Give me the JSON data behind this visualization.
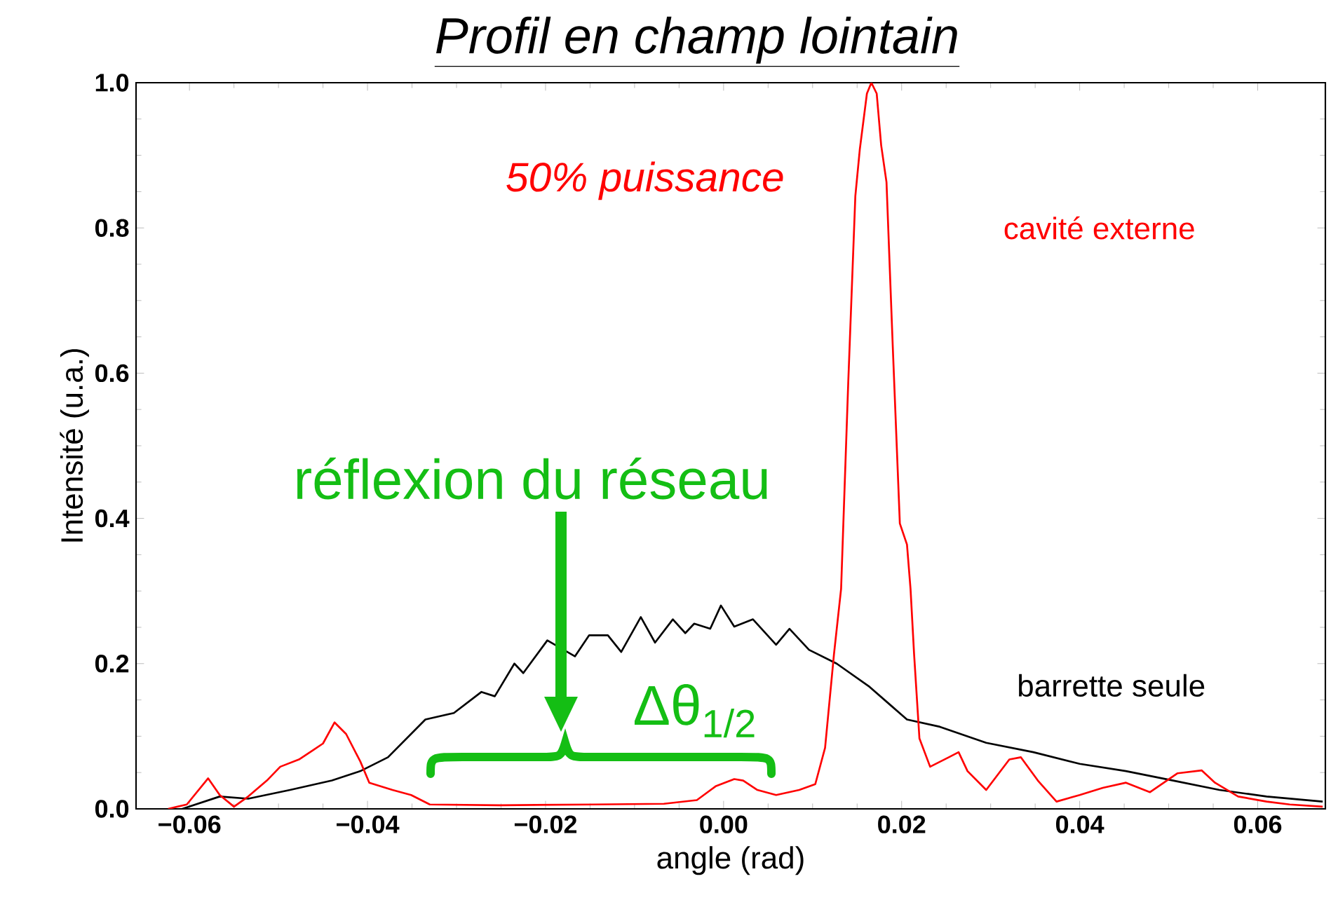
{
  "chart_data": {
    "type": "line",
    "title": "*Profil en champ lointain*",
    "xlabel": "angle (rad)",
    "ylabel": "Intensité (u.a.)",
    "xlim": [
      -0.066,
      0.0676
    ],
    "ylim": [
      0,
      1.0
    ],
    "xticks": [
      {
        "value": -0.06,
        "label": "−0.06"
      },
      {
        "value": -0.04,
        "label": "−0.04"
      },
      {
        "value": -0.02,
        "label": "−0.02"
      },
      {
        "value": 0,
        "label": "0.00"
      },
      {
        "value": 0.02,
        "label": "0.02"
      },
      {
        "value": 0.04,
        "label": "0.04"
      },
      {
        "value": 0.06,
        "label": "0.06"
      }
    ],
    "yticks": [
      {
        "value": 0,
        "label": "0.0"
      },
      {
        "value": 0.2,
        "label": "0.2"
      },
      {
        "value": 0.4,
        "label": "0.4"
      },
      {
        "value": 0.6,
        "label": "0.6"
      },
      {
        "value": 0.8,
        "label": "0.8"
      },
      {
        "value": 1.0,
        "label": "1.0"
      }
    ],
    "grid": false,
    "legend": false,
    "marker": "none",
    "line_style": "solid",
    "annotations": [
      "*50% puissance*",
      "réflexion du réseau",
      "Δθ$_{1/2}$"
    ],
    "series": [
      {
        "name": "barrette seule",
        "color": "#000000",
        "x": [
          -0.0608,
          -0.0566,
          -0.0534,
          -0.0487,
          -0.044,
          -0.0408,
          -0.0377,
          -0.0335,
          -0.0303,
          -0.0272,
          -0.0257,
          -0.0235,
          -0.0225,
          -0.0198,
          -0.0183,
          -0.0167,
          -0.0151,
          -0.013,
          -0.0115,
          -0.0093,
          -0.0077,
          -0.0057,
          -0.0043,
          -0.0033,
          -0.0015,
          -0.0003,
          0.0012,
          0.0033,
          0.0059,
          0.0074,
          0.0096,
          0.0127,
          0.0164,
          0.0206,
          0.0243,
          0.0295,
          0.0348,
          0.04,
          0.0452,
          0.0505,
          0.0557,
          0.061,
          0.0673
        ],
        "values": [
          0.0,
          0.017,
          0.014,
          0.026,
          0.039,
          0.052,
          0.071,
          0.123,
          0.132,
          0.161,
          0.155,
          0.2,
          0.187,
          0.232,
          null,
          0.21,
          0.239,
          0.239,
          0.216,
          0.264,
          0.229,
          0.261,
          0.242,
          0.255,
          0.248,
          0.28,
          0.251,
          0.261,
          0.226,
          0.248,
          0.219,
          0.2,
          0.168,
          0.123,
          0.113,
          0.091,
          0.078,
          0.062,
          0.052,
          0.039,
          0.026,
          0.017,
          0.01
        ]
      },
      {
        "name": "cavité externe",
        "color": "#ff0000",
        "x": [
          -0.0624,
          -0.0603,
          -0.0579,
          -0.0566,
          -0.055,
          -0.0534,
          -0.0513,
          -0.0498,
          -0.0477,
          -0.0461,
          -0.045,
          -0.0437,
          -0.0424,
          -0.0408,
          -0.0398,
          -0.0372,
          -0.0351,
          -0.033,
          -0.0251,
          -0.0146,
          -0.0067,
          -0.003,
          -0.0009,
          0.0012,
          0.0022,
          0.0038,
          0.0059,
          0.0085,
          0.0103,
          0.0114,
          0.0124,
          0.0132,
          0.014,
          0.0148,
          0.0153,
          0.0161,
          0.0166,
          0.0172,
          0.0177,
          0.0183,
          0.019,
          0.0198,
          0.0206,
          0.021,
          0.0214,
          0.022,
          0.0232,
          0.0253,
          0.0264,
          0.0274,
          0.0295,
          0.0321,
          0.0334,
          0.0353,
          0.0374,
          0.04,
          0.0426,
          0.0452,
          0.0479,
          0.051,
          0.0537,
          0.0552,
          0.0578,
          0.061,
          0.0636,
          0.0673
        ],
        "values": [
          0.0,
          0.006,
          0.042,
          0.019,
          0.003,
          0.017,
          0.039,
          0.058,
          0.068,
          0.081,
          0.09,
          0.119,
          0.103,
          0.065,
          0.036,
          0.026,
          0.019,
          0.006,
          0.005,
          0.006,
          0.007,
          0.012,
          0.031,
          0.041,
          0.039,
          0.026,
          0.019,
          0.026,
          0.034,
          0.084,
          0.213,
          0.303,
          0.586,
          0.844,
          0.908,
          0.985,
          1.0,
          0.985,
          0.914,
          0.863,
          0.638,
          0.393,
          0.364,
          0.303,
          0.213,
          0.097,
          0.058,
          0.071,
          0.078,
          0.052,
          0.026,
          0.068,
          0.071,
          0.039,
          0.01,
          0.019,
          0.029,
          0.036,
          0.023,
          0.049,
          0.053,
          0.036,
          0.017,
          0.01,
          0.006,
          0.003
        ]
      }
    ]
  }
}
